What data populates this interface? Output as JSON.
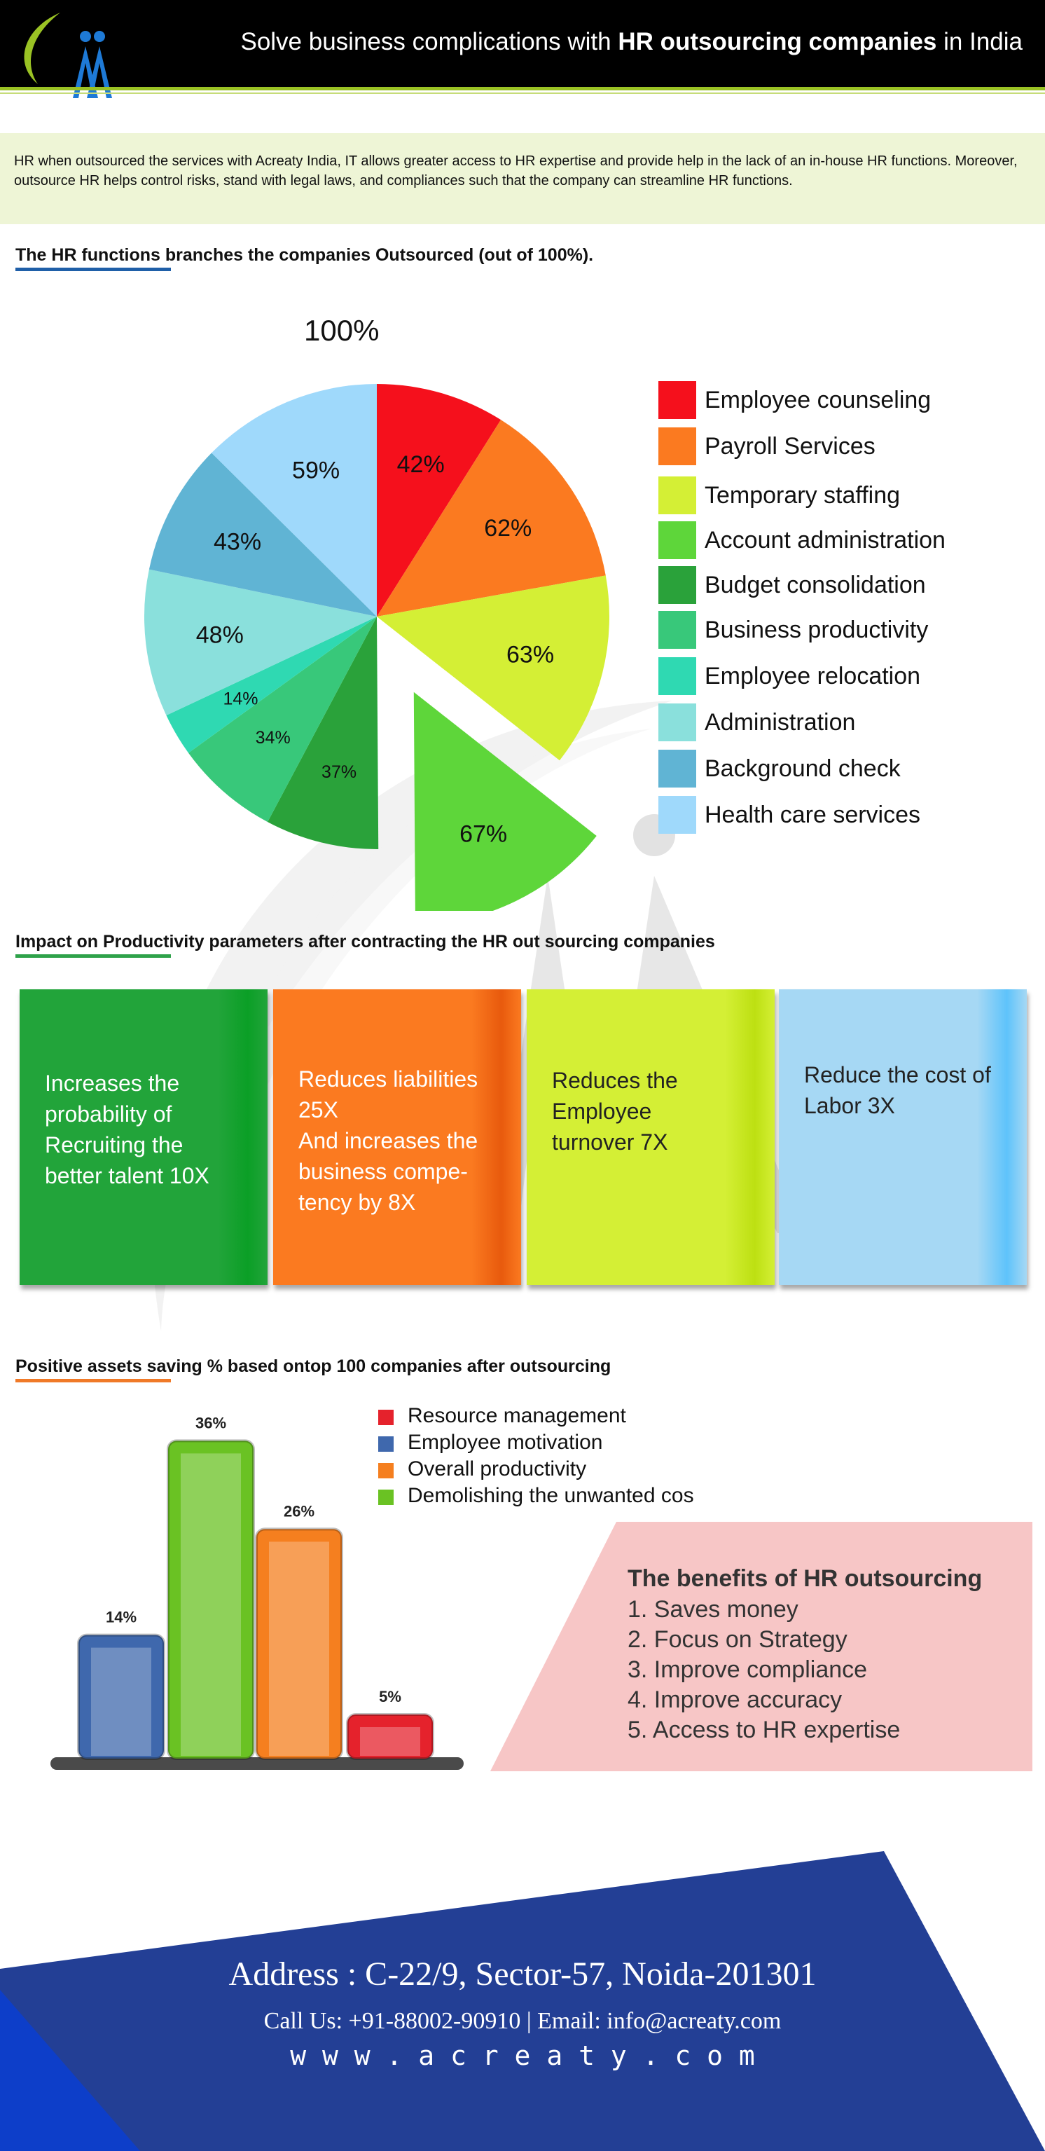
{
  "header": {
    "title_pre": "Solve business complications with ",
    "title_bold": "HR outsourcing companies",
    "title_post": " in India"
  },
  "intro": {
    "text": "HR when outsourced the services with Acreaty India, IT allows greater access to HR expertise and provide help in the lack of an in-house HR functions. Moreover, outsource HR helps control risks, stand with legal laws, and compliances such that the company can streamline HR functions."
  },
  "sections": {
    "functions_title": "The HR functions branches the companies Outsourced (out of 100%).",
    "impact_title": "Impact on Productivity parameters after contracting the HR out sourcing companies",
    "savings_title": "Positive assets saving  % based ontop 100 companies after outsourcing"
  },
  "colors": {
    "header_bg": "#000000",
    "accent_green": "#9ac224",
    "intro_bg": "#eef5d6",
    "underline_blue": "#1f5fa8",
    "underline_green": "#2ea24a",
    "underline_orange": "#f07a28",
    "benefits_bg": "#f7c6c6",
    "footer_blue": "#233f95"
  },
  "chart_data": [
    {
      "type": "pie",
      "title": "100%",
      "categories": [
        "Employee counseling",
        "Payroll Services",
        "Temporary staffing",
        "Account administration",
        "Budget consolidation",
        "Business productivity",
        "Employee relocation",
        "Administration",
        "Background check",
        "Health care services"
      ],
      "values": [
        42,
        62,
        63,
        67,
        37,
        34,
        14,
        48,
        43,
        59
      ],
      "labels": [
        "42%",
        "62%",
        "63%",
        "67%",
        "37%",
        "34%",
        "14%",
        "48%",
        "43%",
        "59%"
      ],
      "colors": [
        "#f5101c",
        "#fb7a20",
        "#d4ef35",
        "#5ed63a",
        "#2aa23a",
        "#38c87a",
        "#2fd9b2",
        "#8ae0dc",
        "#60b4d4",
        "#9fd9fb"
      ],
      "exploded": "Account administration",
      "legend": "right"
    },
    {
      "type": "bar",
      "categories": [
        "Resource management",
        "Employee motivation",
        "Overall productivity",
        "Demolishing the unwanted cos"
      ],
      "series": [
        {
          "values": [
            5,
            14,
            26,
            36
          ]
        }
      ],
      "display_order": [
        "Employee motivation",
        "Demolishing the unwanted cos",
        "Overall productivity",
        "Resource management"
      ],
      "labels": [
        "14%",
        "36%",
        "26%",
        "5%"
      ],
      "colors": [
        "#e5222c",
        "#3f68ad",
        "#f57f1f",
        "#6ac223"
      ],
      "ylim": [
        0,
        40
      ],
      "legend": "top-right"
    }
  ],
  "impact": [
    {
      "text": "Increases the\nprobability of\nRecruiting the\nbetter talent 10X",
      "color": "#22a43a",
      "edge": "#0b9f26"
    },
    {
      "text": "Reduces liabilities\n25X\nAnd increases the\nbusiness compe-\ntency by 8X",
      "color": "#fb7a20",
      "edge": "#e85a0d"
    },
    {
      "text": "Reduces the\nEmployee\nturnover 7X",
      "color": "#d4ef35",
      "edge": "#bde012"
    },
    {
      "text": "Reduce the cost of\nLabor 3X",
      "color": "#a6d8f4",
      "edge": "#5ec3fb"
    }
  ],
  "benefits": {
    "title": "The benefits of  HR outsourcing",
    "items": [
      "1. Saves money",
      "2. Focus on Strategy",
      "3. Improve compliance",
      "4. Improve accuracy",
      "5. Access to HR expertise"
    ]
  },
  "footer": {
    "address": "Address : C-22/9, Sector-57, Noida-201301",
    "contact": "Call Us: +91-88002-90910  |  Email: info@acreaty.com",
    "website": "w w w . a c r e a t y . c o m"
  }
}
